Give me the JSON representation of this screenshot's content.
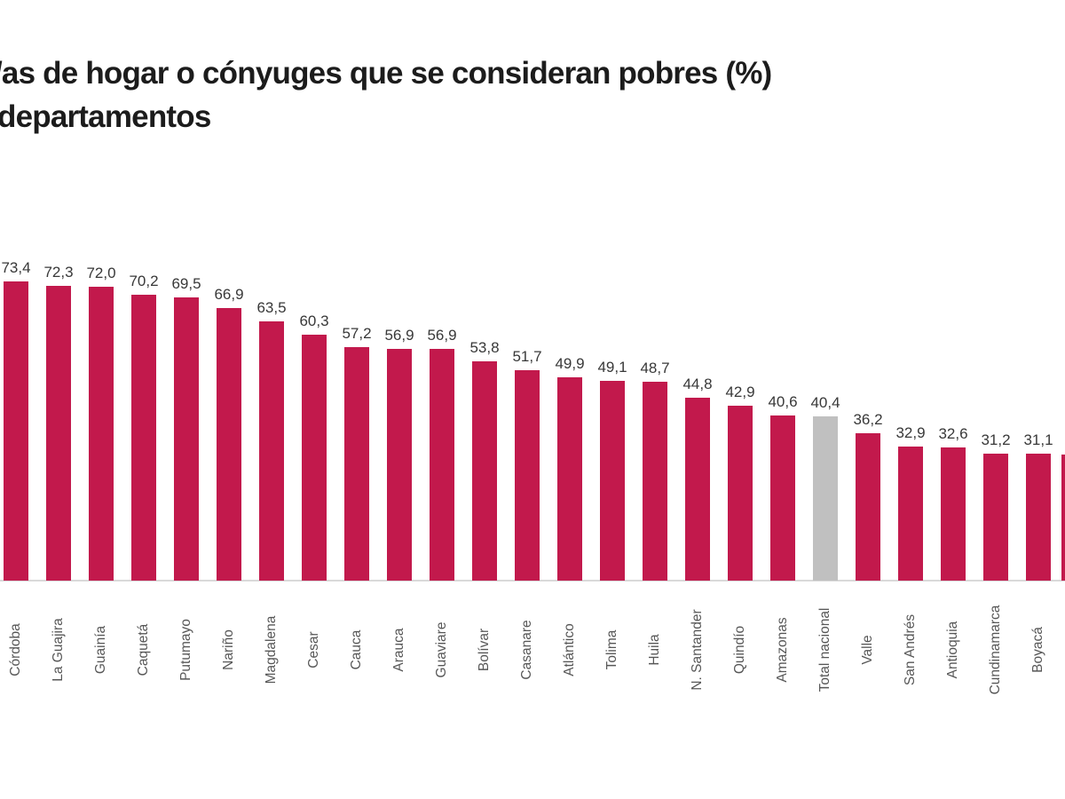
{
  "header": {
    "title_line1": "/as de hogar o cónyuges que se consideran pobres (%)",
    "title_line2": "departamentos"
  },
  "chart_data": {
    "type": "bar",
    "title": "/as de hogar o cónyuges que se consideran pobres (%) departamentos",
    "xlabel": "",
    "ylabel": "",
    "ylim": [
      0,
      80
    ],
    "grid": false,
    "legend": "none",
    "decimal_separator": "comma",
    "categories": [
      "Córdoba",
      "La Guajira",
      "Guainía",
      "Caquetá",
      "Putumayo",
      "Nariño",
      "Magdalena",
      "Cesar",
      "Cauca",
      "Arauca",
      "Guaviare",
      "Bolívar",
      "Casanare",
      "Atlántico",
      "Tolima",
      "Huila",
      "N. Santander",
      "Quindío",
      "Amazonas",
      "Total nacional",
      "Valle",
      "San Andrés",
      "Antioquia",
      "Cundinamarca",
      "Boyacá",
      ""
    ],
    "values": [
      73.4,
      72.3,
      72.0,
      70.2,
      69.5,
      66.9,
      63.5,
      60.3,
      57.2,
      56.9,
      56.9,
      53.8,
      51.7,
      49.9,
      49.1,
      48.7,
      44.8,
      42.9,
      40.6,
      40.4,
      36.2,
      32.9,
      32.6,
      31.2,
      31.1,
      31.0
    ],
    "value_labels": [
      "73,4",
      "72,3",
      "72,0",
      "70,2",
      "69,5",
      "66,9",
      "63,5",
      "60,3",
      "57,2",
      "56,9",
      "56,9",
      "53,8",
      "51,7",
      "49,9",
      "49,1",
      "48,7",
      "44,8",
      "42,9",
      "40,6",
      "40,4",
      "36,2",
      "32,9",
      "32,6",
      "31,2",
      "31,1",
      ""
    ],
    "highlight_index": 19,
    "highlight_category": "Total nacional",
    "partial_last_bar": true,
    "bar_color": "#c2194c",
    "highlight_color": "#c0c0c0",
    "value_label_color": "#383838",
    "category_label_color": "#575757",
    "axis_line_color": "#d9d9d9",
    "title_color": "#1c1c1c",
    "background_color": "#ffffff"
  }
}
